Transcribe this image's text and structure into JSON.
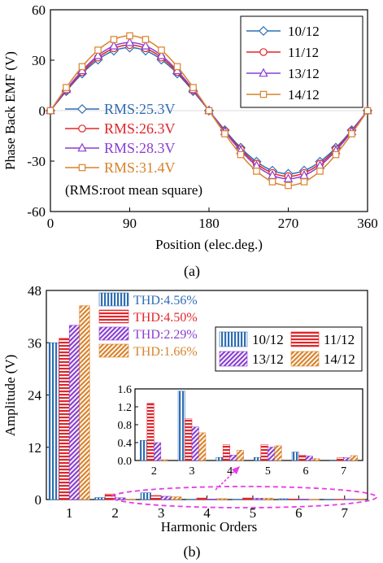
{
  "chart_data": [
    {
      "type": "line",
      "xlabel": "Position (elec.deg.)",
      "ylabel": "Phase Back EMF (V)",
      "xlim": [
        0,
        360
      ],
      "ylim": [
        -60,
        60
      ],
      "xticks": [
        "0",
        "90",
        "180",
        "270",
        "360"
      ],
      "yticks": [
        "60",
        "30",
        "0",
        "-30",
        "-60"
      ],
      "legend_position": "top-right",
      "grid": false,
      "series": [
        {
          "name": "10/12",
          "color": "#2f6db3",
          "marker": "diamond",
          "peak": 37.5,
          "rms": "RMS:25.3V"
        },
        {
          "name": "11/12",
          "color": "#e0262b",
          "marker": "circle",
          "peak": 39.0,
          "rms": "RMS:26.3V"
        },
        {
          "name": "13/12",
          "color": "#8a3fd1",
          "marker": "triangle",
          "peak": 40.5,
          "rms": "RMS:28.3V"
        },
        {
          "name": "14/12",
          "color": "#d9822b",
          "marker": "square",
          "peak": 44.5,
          "rms": "RMS:31.4V"
        }
      ],
      "annotation": "(RMS:root mean square)",
      "caption": "(a)"
    },
    {
      "type": "bar",
      "xlabel": "Harmonic Orders",
      "ylabel": "Amplitude (V)",
      "ylim": [
        0,
        48
      ],
      "yticks": [
        "48",
        "36",
        "24",
        "12",
        "0"
      ],
      "categories": [
        "1",
        "2",
        "3",
        "4",
        "5",
        "6",
        "7"
      ],
      "legend_position": "top-right",
      "series": [
        {
          "name": "10/12",
          "color": "#2f6db3",
          "pattern": "vertical",
          "thd": "THD:4.56%",
          "values": [
            36.0,
            0.45,
            1.55,
            0.07,
            0.07,
            0.19,
            0.01
          ]
        },
        {
          "name": "11/12",
          "color": "#e0262b",
          "pattern": "horizontal",
          "thd": "THD:4.50%",
          "values": [
            37.0,
            1.28,
            0.93,
            0.35,
            0.36,
            0.12,
            0.06
          ]
        },
        {
          "name": "13/12",
          "color": "#8a3fd1",
          "pattern": "diagonal",
          "thd": "THD:2.29%",
          "values": [
            40.0,
            0.4,
            0.75,
            0.12,
            0.3,
            0.1,
            0.06
          ]
        },
        {
          "name": "14/12",
          "color": "#d9822b",
          "pattern": "diagonal",
          "thd": "THD:1.66%",
          "values": [
            44.5,
            0.02,
            0.62,
            0.23,
            0.33,
            0.04,
            0.11
          ]
        }
      ],
      "inset": {
        "categories": [
          "2",
          "3",
          "4",
          "5",
          "6",
          "7"
        ],
        "ylim": [
          0,
          1.6
        ],
        "yticks": [
          "1.6",
          "1.2",
          "0.8",
          "0.4",
          "0.0"
        ]
      },
      "caption": "(b)"
    }
  ]
}
